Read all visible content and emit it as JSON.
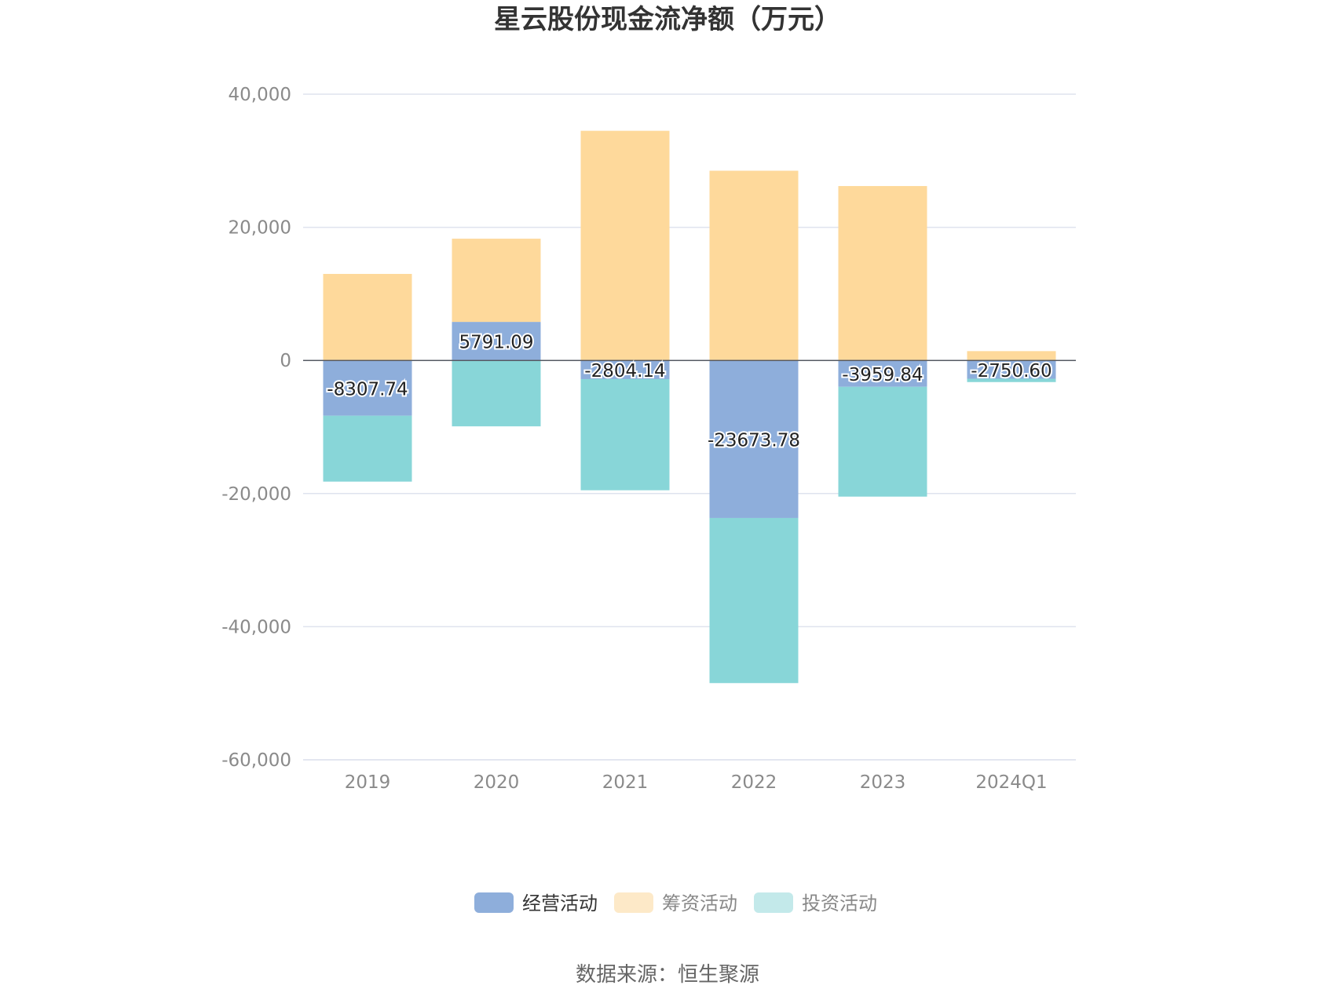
{
  "chart_data": {
    "type": "bar",
    "stacked": true,
    "title": "星云股份现金流净额（万元）",
    "categories": [
      "2019",
      "2020",
      "2021",
      "2022",
      "2023",
      "2024Q1"
    ],
    "series": [
      {
        "name": "经营活动",
        "color": "#8eaedb",
        "values": [
          -8307.74,
          5791.09,
          -2804.14,
          -23673.78,
          -3959.84,
          -2750.6
        ],
        "labels": [
          "-8307.74",
          "5791.09",
          "-2804.14",
          "-23673.78",
          "-3959.84",
          "-2750.60"
        ]
      },
      {
        "name": "筹资活动",
        "color": "#fed99b",
        "values": [
          13000,
          12500,
          34500,
          28500,
          26200,
          1400
        ]
      },
      {
        "name": "投资活动",
        "color": "#88d6d8",
        "values": [
          -9900,
          -9900,
          -16700,
          -24800,
          -16500,
          -500
        ]
      }
    ],
    "yticks": [
      "40,000",
      "20,000",
      "0",
      "-20,000",
      "-40,000",
      "-60,000"
    ],
    "ylim": [
      -60000,
      40000
    ],
    "grid": true,
    "legend_position": "bottom"
  },
  "source": "数据来源：恒生聚源"
}
